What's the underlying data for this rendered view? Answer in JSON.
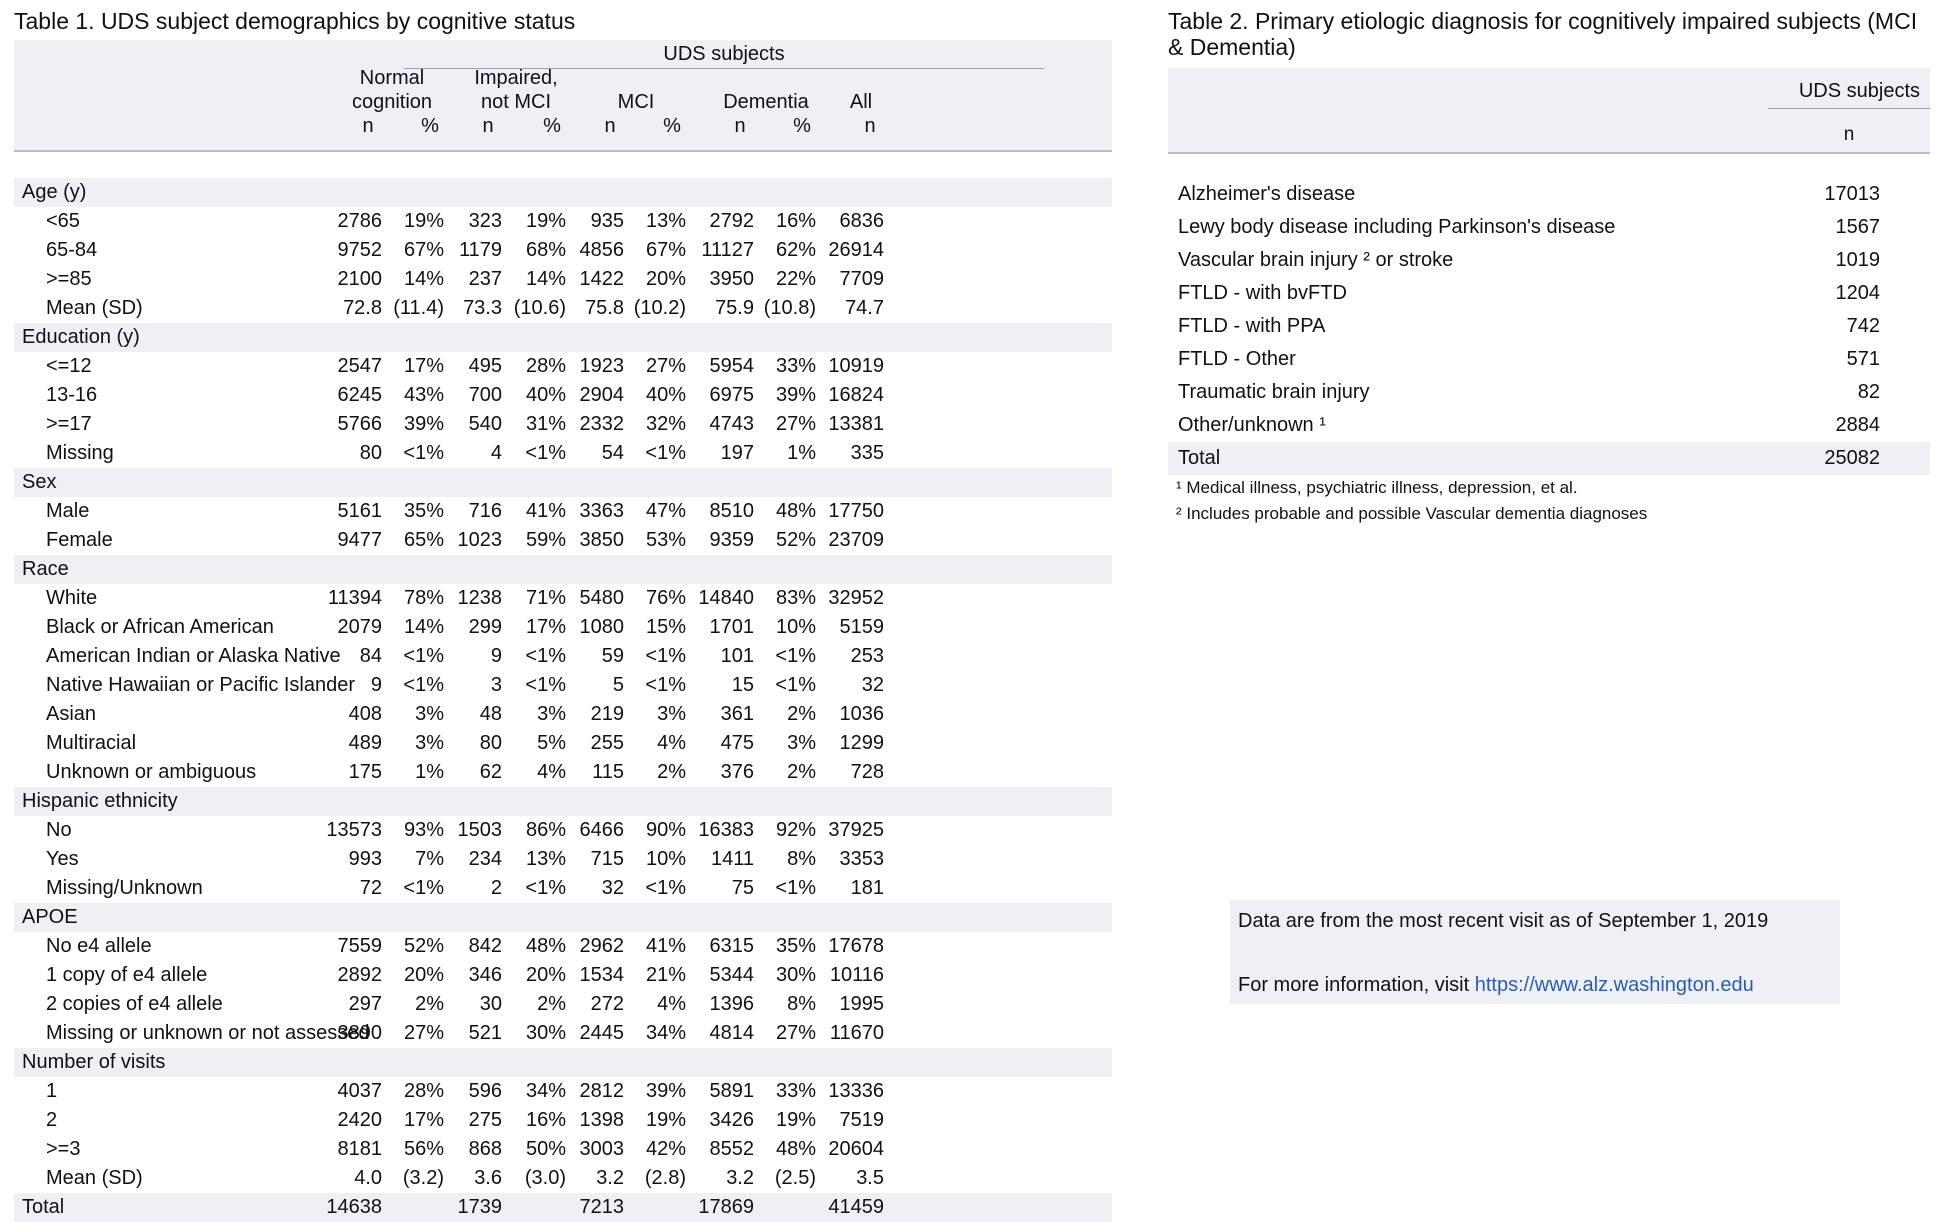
{
  "table1": {
    "title": "Table 1. UDS subject demographics by cognitive status",
    "header": {
      "uds_subjects": "UDS subjects",
      "groups": [
        "Normal\ncognition",
        "Impaired,\nnot MCI",
        "MCI",
        "Dementia",
        "All"
      ],
      "subcols": [
        "n",
        "%",
        "n",
        "%",
        "n",
        "%",
        "n",
        "%",
        "n"
      ]
    },
    "sections": [
      {
        "label": "Age (y)",
        "rows": [
          {
            "label": "<65",
            "values": [
              "2786",
              "19%",
              "323",
              "19%",
              "935",
              "13%",
              "2792",
              "16%",
              "6836"
            ]
          },
          {
            "label": "65-84",
            "values": [
              "9752",
              "67%",
              "1179",
              "68%",
              "4856",
              "67%",
              "11127",
              "62%",
              "26914"
            ]
          },
          {
            "label": ">=85",
            "values": [
              "2100",
              "14%",
              "237",
              "14%",
              "1422",
              "20%",
              "3950",
              "22%",
              "7709"
            ]
          },
          {
            "label": "Mean (SD)",
            "values": [
              "72.8",
              "(11.4)",
              "73.3",
              "(10.6)",
              "75.8",
              "(10.2)",
              "75.9",
              "(10.8)",
              "74.7"
            ]
          }
        ]
      },
      {
        "label": "Education (y)",
        "rows": [
          {
            "label": "<=12",
            "values": [
              "2547",
              "17%",
              "495",
              "28%",
              "1923",
              "27%",
              "5954",
              "33%",
              "10919"
            ]
          },
          {
            "label": "13-16",
            "values": [
              "6245",
              "43%",
              "700",
              "40%",
              "2904",
              "40%",
              "6975",
              "39%",
              "16824"
            ]
          },
          {
            "label": ">=17",
            "values": [
              "5766",
              "39%",
              "540",
              "31%",
              "2332",
              "32%",
              "4743",
              "27%",
              "13381"
            ]
          },
          {
            "label": "Missing",
            "values": [
              "80",
              "<1%",
              "4",
              "<1%",
              "54",
              "<1%",
              "197",
              "1%",
              "335"
            ]
          }
        ]
      },
      {
        "label": "Sex",
        "rows": [
          {
            "label": "Male",
            "values": [
              "5161",
              "35%",
              "716",
              "41%",
              "3363",
              "47%",
              "8510",
              "48%",
              "17750"
            ]
          },
          {
            "label": "Female",
            "values": [
              "9477",
              "65%",
              "1023",
              "59%",
              "3850",
              "53%",
              "9359",
              "52%",
              "23709"
            ]
          }
        ]
      },
      {
        "label": "Race",
        "rows": [
          {
            "label": "White",
            "values": [
              "11394",
              "78%",
              "1238",
              "71%",
              "5480",
              "76%",
              "14840",
              "83%",
              "32952"
            ]
          },
          {
            "label": "Black or African American",
            "values": [
              "2079",
              "14%",
              "299",
              "17%",
              "1080",
              "15%",
              "1701",
              "10%",
              "5159"
            ]
          },
          {
            "label": "American Indian or Alaska Native",
            "values": [
              "84",
              "<1%",
              "9",
              "<1%",
              "59",
              "<1%",
              "101",
              "<1%",
              "253"
            ]
          },
          {
            "label": "Native Hawaiian or Pacific Islander",
            "values": [
              "9",
              "<1%",
              "3",
              "<1%",
              "5",
              "<1%",
              "15",
              "<1%",
              "32"
            ]
          },
          {
            "label": "Asian",
            "values": [
              "408",
              "3%",
              "48",
              "3%",
              "219",
              "3%",
              "361",
              "2%",
              "1036"
            ]
          },
          {
            "label": "Multiracial",
            "values": [
              "489",
              "3%",
              "80",
              "5%",
              "255",
              "4%",
              "475",
              "3%",
              "1299"
            ]
          },
          {
            "label": "Unknown or ambiguous",
            "values": [
              "175",
              "1%",
              "62",
              "4%",
              "115",
              "2%",
              "376",
              "2%",
              "728"
            ]
          }
        ]
      },
      {
        "label": "Hispanic ethnicity",
        "rows": [
          {
            "label": "No",
            "values": [
              "13573",
              "93%",
              "1503",
              "86%",
              "6466",
              "90%",
              "16383",
              "92%",
              "37925"
            ]
          },
          {
            "label": "Yes",
            "values": [
              "993",
              "7%",
              "234",
              "13%",
              "715",
              "10%",
              "1411",
              "8%",
              "3353"
            ]
          },
          {
            "label": "Missing/Unknown",
            "values": [
              "72",
              "<1%",
              "2",
              "<1%",
              "32",
              "<1%",
              "75",
              "<1%",
              "181"
            ]
          }
        ]
      },
      {
        "label": "APOE",
        "rows": [
          {
            "label": "No e4 allele",
            "values": [
              "7559",
              "52%",
              "842",
              "48%",
              "2962",
              "41%",
              "6315",
              "35%",
              "17678"
            ]
          },
          {
            "label": "1 copy of e4 allele",
            "values": [
              "2892",
              "20%",
              "346",
              "20%",
              "1534",
              "21%",
              "5344",
              "30%",
              "10116"
            ]
          },
          {
            "label": "2 copies of e4 allele",
            "values": [
              "297",
              "2%",
              "30",
              "2%",
              "272",
              "4%",
              "1396",
              "8%",
              "1995"
            ]
          },
          {
            "label": "Missing or unknown or not assessed",
            "values": [
              "3890",
              "27%",
              "521",
              "30%",
              "2445",
              "34%",
              "4814",
              "27%",
              "11670"
            ]
          }
        ]
      },
      {
        "label": "Number of visits",
        "rows": [
          {
            "label": "1",
            "values": [
              "4037",
              "28%",
              "596",
              "34%",
              "2812",
              "39%",
              "5891",
              "33%",
              "13336"
            ]
          },
          {
            "label": "2",
            "values": [
              "2420",
              "17%",
              "275",
              "16%",
              "1398",
              "19%",
              "3426",
              "19%",
              "7519"
            ]
          },
          {
            "label": ">=3",
            "values": [
              "8181",
              "56%",
              "868",
              "50%",
              "3003",
              "42%",
              "8552",
              "48%",
              "20604"
            ]
          },
          {
            "label": "Mean (SD)",
            "values": [
              "4.0",
              "(3.2)",
              "3.6",
              "(3.0)",
              "3.2",
              "(2.8)",
              "3.2",
              "(2.5)",
              "3.5"
            ]
          }
        ]
      }
    ],
    "total": {
      "label": "Total",
      "values": [
        "14638",
        "",
        "1739",
        "",
        "7213",
        "",
        "17869",
        "",
        "41459"
      ]
    }
  },
  "table2": {
    "title": "Table 2. Primary etiologic diagnosis for cognitively impaired subjects (MCI & Dementia)",
    "header": {
      "uds_subjects": "UDS subjects",
      "n": "n"
    },
    "rows": [
      {
        "label": "Alzheimer's disease",
        "value": "17013"
      },
      {
        "label": "Lewy body disease including Parkinson's disease",
        "value": "1567"
      },
      {
        "label": "Vascular brain injury ² or stroke",
        "value": "1019"
      },
      {
        "label": "FTLD - with bvFTD",
        "value": "1204"
      },
      {
        "label": "FTLD - with PPA",
        "value": "742"
      },
      {
        "label": "FTLD - Other",
        "value": "571"
      },
      {
        "label": "Traumatic brain injury",
        "value": "82"
      },
      {
        "label": "Other/unknown ¹",
        "value": "2884"
      }
    ],
    "total": {
      "label": "Total",
      "value": "25082"
    },
    "footnotes": [
      "¹ Medical illness, psychiatric illness, depression, et al.",
      "² Includes probable and possible Vascular dementia diagnoses"
    ]
  },
  "info": {
    "line1": "Data are from the most recent visit as of September 1, 2019",
    "line2_prefix": "For more information, visit",
    "link": "https://www.alz.washington.edu"
  }
}
